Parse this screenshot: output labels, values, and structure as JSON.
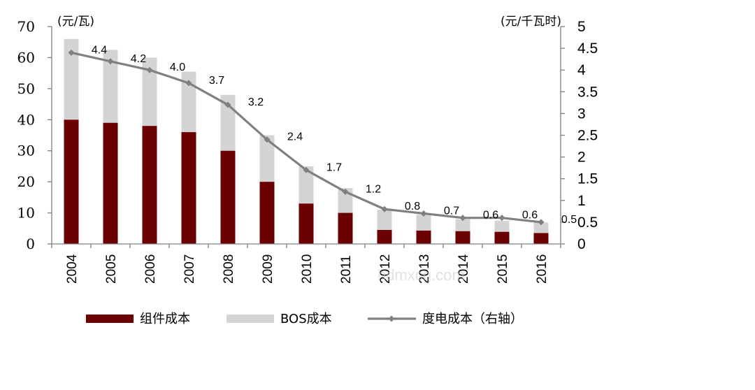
{
  "chart_data": {
    "type": "bar",
    "stacked": true,
    "categories": [
      "2004",
      "2005",
      "2006",
      "2007",
      "2008",
      "2009",
      "2010",
      "2011",
      "2012",
      "2013",
      "2014",
      "2015",
      "2016"
    ],
    "y_left_label": "(元/瓦)",
    "y_right_label": "(元/千瓦时)",
    "y_left_ticks": [
      "0",
      "10",
      "20",
      "30",
      "40",
      "50",
      "60",
      "70"
    ],
    "y_right_ticks": [
      "0",
      "0.5",
      "1",
      "1.5",
      "2",
      "2.5",
      "3",
      "3.5",
      "4",
      "4.5",
      "5"
    ],
    "ylim_left": [
      0,
      70
    ],
    "ylim_right": [
      0,
      5
    ],
    "series": [
      {
        "name": "组件成本",
        "kind": "bar",
        "axis": "left",
        "color": "#6b0000",
        "values": [
          40,
          39,
          38,
          36,
          30,
          20,
          13,
          10,
          4.5,
          4.3,
          4.1,
          3.9,
          3.5
        ]
      },
      {
        "name": "BOS成本",
        "kind": "bar",
        "axis": "left",
        "color": "#d4d4d4",
        "values": [
          26,
          23.5,
          22,
          19.5,
          18,
          15,
          12,
          8,
          6.5,
          5.2,
          3.9,
          3.6,
          3.4
        ]
      },
      {
        "name": "度电成本（右轴）",
        "kind": "line",
        "axis": "right",
        "color": "#808080",
        "values": [
          4.4,
          4.2,
          4.0,
          3.7,
          3.2,
          2.4,
          1.7,
          1.2,
          0.8,
          0.7,
          0.6,
          0.6,
          0.5
        ],
        "labels": [
          "4.4",
          "4.2",
          "4.0",
          "3.7",
          "3.2",
          "2.4",
          "1.7",
          "1.2",
          "0.8",
          "0.7",
          "0.6",
          "0.6",
          "0.5"
        ]
      }
    ],
    "legend_position": "bottom",
    "grid": false
  },
  "watermark": "hdmxcg.com"
}
